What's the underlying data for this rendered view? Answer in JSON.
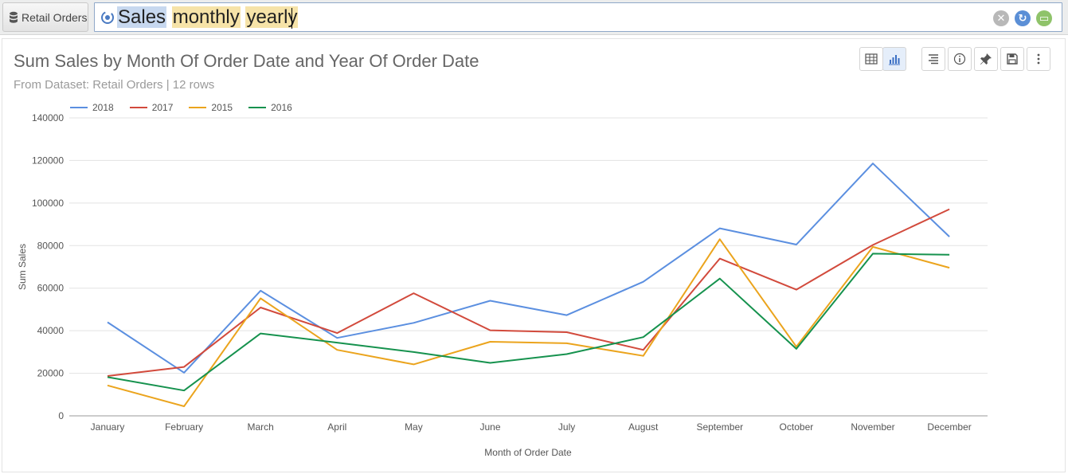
{
  "topbar": {
    "dataset_label": "Retail Orders",
    "query_tokens": [
      "Sales",
      "monthly",
      "yearly"
    ]
  },
  "icons": {
    "dataset": "database-icon",
    "search_logo": "search-logo-icon",
    "clear": "clear-icon",
    "refresh": "refresh-icon",
    "open": "folder-icon",
    "table": "table-view-icon",
    "chart": "chart-view-icon",
    "format": "format-icon",
    "info": "info-icon",
    "pin": "pin-icon",
    "save": "save-icon",
    "more": "more-icon"
  },
  "panel": {
    "title": "Sum Sales by Month Of Order Date and Year Of Order Date",
    "subtitle": "From Dataset: Retail Orders | 12 rows"
  },
  "chart_data": {
    "type": "line",
    "title": "Sum Sales by Month Of Order Date and Year Of Order Date",
    "xlabel": "Month of Order Date",
    "ylabel": "Sum Sales",
    "ylim": [
      0,
      140000
    ],
    "yticks": [
      0,
      20000,
      40000,
      60000,
      80000,
      100000,
      120000,
      140000
    ],
    "grid": true,
    "legend_position": "top-left",
    "categories": [
      "January",
      "February",
      "March",
      "April",
      "May",
      "June",
      "July",
      "August",
      "September",
      "October",
      "November",
      "December"
    ],
    "series": [
      {
        "name": "2018",
        "color": "#5b8fe0",
        "values": [
          44000,
          20300,
          58800,
          36600,
          43700,
          54100,
          47300,
          63000,
          88100,
          80500,
          118600,
          84200
        ]
      },
      {
        "name": "2017",
        "color": "#d24a3c",
        "values": [
          18700,
          23000,
          50900,
          38900,
          57600,
          40200,
          39300,
          31000,
          73900,
          59300,
          80300,
          97100
        ]
      },
      {
        "name": "2015",
        "color": "#eba41d",
        "values": [
          14300,
          4500,
          55200,
          31000,
          24200,
          34800,
          34100,
          28200,
          83000,
          32500,
          79400,
          69600
        ]
      },
      {
        "name": "2016",
        "color": "#16924e",
        "values": [
          18200,
          11900,
          38700,
          34400,
          30000,
          24900,
          29000,
          37000,
          64500,
          31500,
          76200,
          75700
        ]
      }
    ]
  }
}
